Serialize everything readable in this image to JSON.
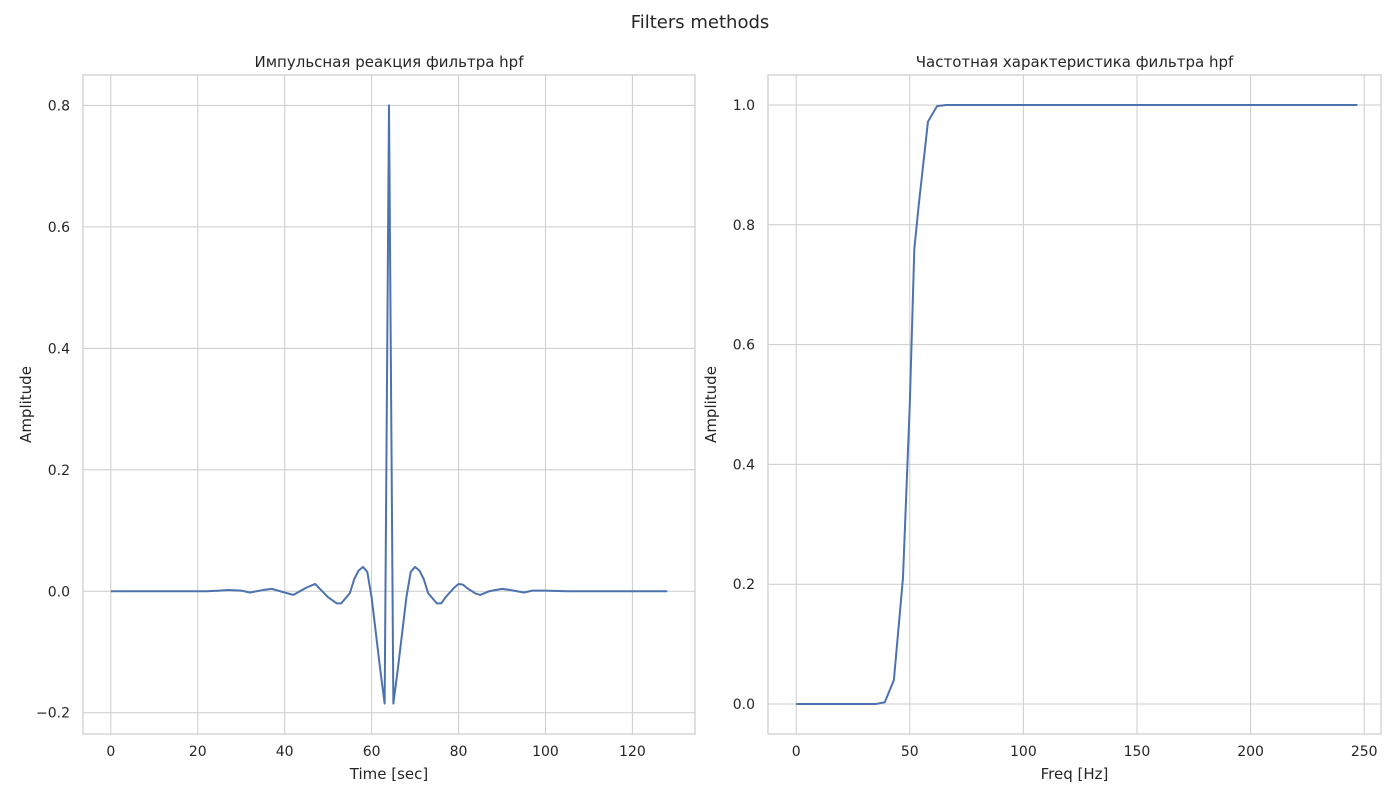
{
  "figure_title": "Filters methods",
  "colors": {
    "series": "#4c72b0",
    "grid": "#cccccc",
    "text": "#262626"
  },
  "chart_data": [
    {
      "type": "line",
      "title": "Импульсная реакция фильтра hpf",
      "xlabel": "Time [sec]",
      "ylabel": "Amplitude",
      "xlim": [
        -6.4,
        134.4
      ],
      "ylim": [
        -0.235,
        0.85
      ],
      "xticks": [
        0,
        20,
        40,
        60,
        80,
        100,
        120
      ],
      "yticks": [
        -0.2,
        0.0,
        0.2,
        0.4,
        0.6,
        0.8
      ],
      "ytick_labels": [
        "−0.2",
        "0.0",
        "0.2",
        "0.4",
        "0.6",
        "0.8"
      ],
      "grid": true,
      "series": [
        {
          "x": [
            0,
            5,
            10,
            15,
            20,
            22,
            25,
            27,
            30,
            32,
            35,
            37,
            40,
            42,
            45,
            47,
            50,
            52,
            53,
            55,
            56,
            57,
            58,
            59,
            60,
            61,
            62,
            63,
            64,
            65,
            66,
            67,
            68,
            69,
            70,
            71,
            72,
            73,
            75,
            76,
            77,
            79,
            80,
            81,
            82,
            84,
            85,
            87,
            90,
            92,
            95,
            97,
            100,
            105,
            110,
            115,
            120,
            125,
            128
          ],
          "y": [
            0,
            0,
            0,
            0,
            0,
            0,
            0.001,
            0.002,
            0.001,
            -0.002,
            0.002,
            0.004,
            -0.002,
            -0.006,
            0.006,
            0.012,
            -0.01,
            -0.02,
            -0.02,
            -0.003,
            0.02,
            0.034,
            0.04,
            0.032,
            -0.01,
            -0.07,
            -0.13,
            -0.185,
            0.8,
            -0.185,
            -0.13,
            -0.07,
            -0.01,
            0.032,
            0.04,
            0.034,
            0.02,
            -0.003,
            -0.02,
            -0.02,
            -0.01,
            0.006,
            0.012,
            0.011,
            0.005,
            -0.004,
            -0.006,
            0,
            0.004,
            0.002,
            -0.002,
            0.001,
            0.001,
            0,
            0,
            0,
            0,
            0,
            0
          ]
        }
      ]
    },
    {
      "type": "line",
      "title": "Частотная характеристика фильтра hpf",
      "xlabel": "Freq [Hz]",
      "ylabel": "Amplitude",
      "xlim": [
        -12.4,
        257.4
      ],
      "ylim": [
        -0.05,
        1.05
      ],
      "xticks": [
        0,
        50,
        100,
        150,
        200,
        250
      ],
      "yticks": [
        0.0,
        0.2,
        0.4,
        0.6,
        0.8,
        1.0
      ],
      "ytick_labels": [
        "0.0",
        "0.2",
        "0.4",
        "0.6",
        "0.8",
        "1.0"
      ],
      "grid": true,
      "series": [
        {
          "x": [
            0,
            5,
            10,
            15,
            20,
            25,
            30,
            35,
            39,
            43,
            47,
            50,
            52,
            54,
            58,
            62,
            66,
            100,
            150,
            200,
            247
          ],
          "y": [
            0,
            0,
            0,
            0,
            0,
            0,
            0,
            0,
            0.003,
            0.04,
            0.21,
            0.5,
            0.76,
            0.835,
            0.972,
            0.998,
            1.0,
            1.0,
            1.0,
            1.0,
            1.0
          ]
        }
      ]
    }
  ]
}
